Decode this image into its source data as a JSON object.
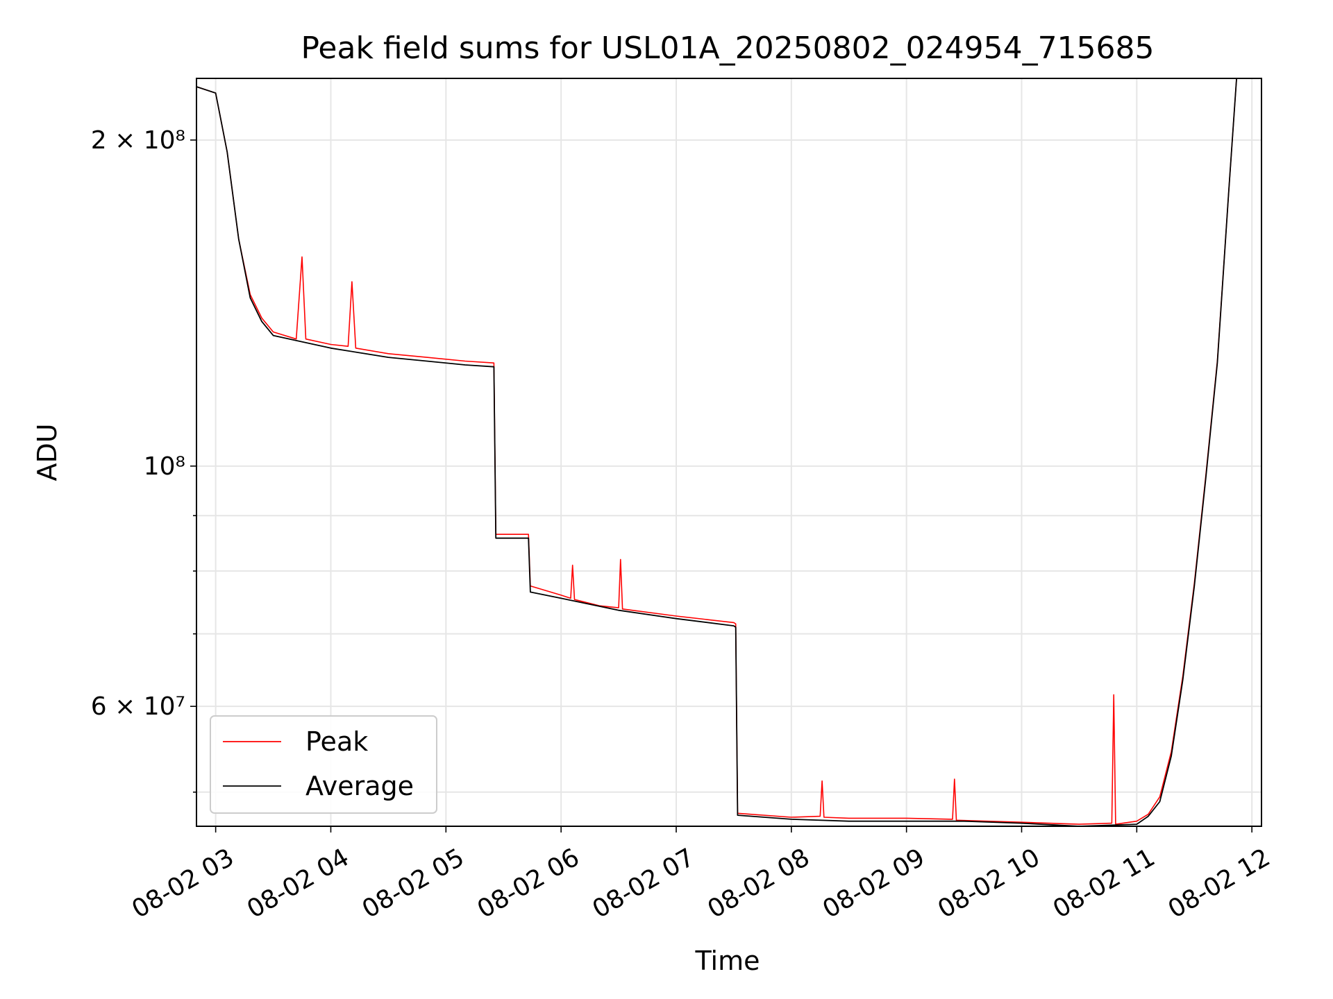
{
  "chart_data": {
    "type": "line",
    "title": "Peak field sums for USL01A_20250802_024954_715685",
    "xlabel": "Time",
    "ylabel": "ADU",
    "x_tick_labels": [
      "08-02 03",
      "08-02 04",
      "08-02 05",
      "08-02 06",
      "08-02 07",
      "08-02 08",
      "08-02 09",
      "08-02 10",
      "08-02 11",
      "08-02 12"
    ],
    "x_range": [
      "08-02 02:50",
      "08-02 12:05"
    ],
    "y_scale": "log",
    "y_range": [
      46500000,
      228000000
    ],
    "y_ticks": [
      {
        "value": 200000000,
        "label": "2 × 10⁸"
      },
      {
        "value": 100000000,
        "label": "10⁸"
      },
      {
        "value": 60000000,
        "label": "6 × 10⁷"
      }
    ],
    "y_minor_ticks": [
      50000000,
      70000000,
      80000000,
      90000000
    ],
    "grid": true,
    "legend_position": "lower-left",
    "series": [
      {
        "name": "Peak",
        "color": "#ff0000",
        "points": [
          [
            "02:50",
            224000000
          ],
          [
            "03:00",
            221000000
          ],
          [
            "03:06",
            195000000
          ],
          [
            "03:12",
            162000000
          ],
          [
            "03:18",
            144000000
          ],
          [
            "03:24",
            137000000
          ],
          [
            "03:30",
            133000000
          ],
          [
            "03:42",
            131000000
          ],
          [
            "03:45",
            156000000
          ],
          [
            "03:47",
            131000000
          ],
          [
            "04:00",
            129500000
          ],
          [
            "04:09",
            129000000
          ],
          [
            "04:11",
            148000000
          ],
          [
            "04:13",
            128500000
          ],
          [
            "04:30",
            127000000
          ],
          [
            "04:50",
            126000000
          ],
          [
            "05:10",
            125000000
          ],
          [
            "05:25",
            124500000
          ],
          [
            "05:26",
            86500000
          ],
          [
            "05:43",
            86500000
          ],
          [
            "05:44",
            77500000
          ],
          [
            "06:00",
            76000000
          ],
          [
            "06:05",
            75500000
          ],
          [
            "06:06",
            81000000
          ],
          [
            "06:07",
            75300000
          ],
          [
            "06:20",
            74300000
          ],
          [
            "06:30",
            74000000
          ],
          [
            "06:31",
            82000000
          ],
          [
            "06:32",
            73800000
          ],
          [
            "07:00",
            72700000
          ],
          [
            "07:30",
            71700000
          ],
          [
            "07:31",
            71500000
          ],
          [
            "07:32",
            47800000
          ],
          [
            "08:00",
            47400000
          ],
          [
            "08:15",
            47500000
          ],
          [
            "08:16",
            51200000
          ],
          [
            "08:17",
            47400000
          ],
          [
            "08:30",
            47300000
          ],
          [
            "09:00",
            47300000
          ],
          [
            "09:24",
            47200000
          ],
          [
            "09:25",
            51400000
          ],
          [
            "09:26",
            47100000
          ],
          [
            "10:00",
            46900000
          ],
          [
            "10:30",
            46700000
          ],
          [
            "10:47",
            46800000
          ],
          [
            "10:48",
            61500000
          ],
          [
            "10:49",
            46700000
          ],
          [
            "11:00",
            47000000
          ],
          [
            "11:06",
            47700000
          ],
          [
            "11:12",
            49500000
          ],
          [
            "11:18",
            54500000
          ],
          [
            "11:24",
            64000000
          ],
          [
            "11:30",
            78000000
          ],
          [
            "11:36",
            98000000
          ],
          [
            "11:42",
            125000000
          ],
          [
            "11:48",
            180000000
          ],
          [
            "11:52",
            228000000
          ]
        ]
      },
      {
        "name": "Average",
        "color": "#000000",
        "points": [
          [
            "02:50",
            224000000
          ],
          [
            "03:00",
            221000000
          ],
          [
            "03:06",
            195000000
          ],
          [
            "03:12",
            162000000
          ],
          [
            "03:18",
            143000000
          ],
          [
            "03:24",
            136000000
          ],
          [
            "03:30",
            132000000
          ],
          [
            "04:00",
            128500000
          ],
          [
            "04:30",
            126000000
          ],
          [
            "04:50",
            125000000
          ],
          [
            "05:10",
            124000000
          ],
          [
            "05:25",
            123500000
          ],
          [
            "05:26",
            85800000
          ],
          [
            "05:43",
            85800000
          ],
          [
            "05:44",
            76500000
          ],
          [
            "06:00",
            75500000
          ],
          [
            "06:30",
            73600000
          ],
          [
            "07:00",
            72300000
          ],
          [
            "07:30",
            71200000
          ],
          [
            "07:31",
            71000000
          ],
          [
            "07:32",
            47600000
          ],
          [
            "08:00",
            47200000
          ],
          [
            "08:30",
            47000000
          ],
          [
            "09:00",
            47000000
          ],
          [
            "09:30",
            47000000
          ],
          [
            "10:00",
            46800000
          ],
          [
            "10:30",
            46500000
          ],
          [
            "11:00",
            46700000
          ],
          [
            "11:06",
            47500000
          ],
          [
            "11:12",
            49000000
          ],
          [
            "11:18",
            54000000
          ],
          [
            "11:24",
            63500000
          ],
          [
            "11:30",
            77500000
          ],
          [
            "11:36",
            97500000
          ],
          [
            "11:42",
            124500000
          ],
          [
            "11:48",
            180000000
          ],
          [
            "11:52",
            228000000
          ]
        ]
      }
    ]
  }
}
